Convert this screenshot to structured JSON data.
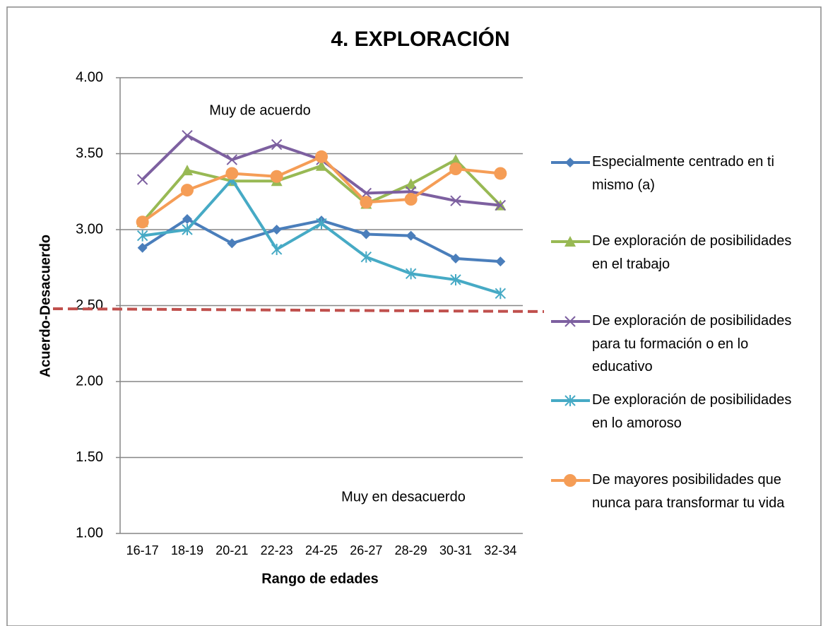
{
  "chart_data": {
    "type": "line",
    "title": "4. EXPLORACIÓN",
    "x_label": "Rango de edades",
    "y_label": "Acuerdo-Desacuerdo",
    "annotations": [
      "Muy de acuerdo",
      "Muy en desacuerdo"
    ],
    "categories": [
      "16-17",
      "18-19",
      "20-21",
      "22-23",
      "24-25",
      "26-27",
      "28-29",
      "30-31",
      "32-34"
    ],
    "series": [
      {
        "name": "Especialmente centrado en ti mismo (a)",
        "color": "#4a7ebb",
        "marker": "diamond",
        "values": [
          2.88,
          3.07,
          2.91,
          3.0,
          3.06,
          2.97,
          2.96,
          2.81,
          2.79
        ]
      },
      {
        "name": "De exploración de posibilidades en el trabajo",
        "color": "#98b954",
        "marker": "triangle",
        "values": [
          3.05,
          3.39,
          3.32,
          3.32,
          3.42,
          3.17,
          3.3,
          3.46,
          3.16
        ]
      },
      {
        "name": "De exploración de posibilidades para tu formación o en lo educativo",
        "color": "#7d60a0",
        "marker": "x",
        "values": [
          3.33,
          3.62,
          3.46,
          3.56,
          3.46,
          3.24,
          3.25,
          3.19,
          3.16
        ]
      },
      {
        "name": "De exploración de posibilidades en lo amoroso",
        "color": "#46aac5",
        "marker": "star",
        "values": [
          2.96,
          3.0,
          3.33,
          2.87,
          3.04,
          2.82,
          2.71,
          2.67,
          2.58
        ]
      },
      {
        "name": "De mayores posibilidades que nunca para transformar tu vida",
        "color": "#f59d56",
        "marker": "circle",
        "values": [
          3.05,
          3.26,
          3.37,
          3.35,
          3.48,
          3.18,
          3.2,
          3.4,
          3.37
        ]
      }
    ],
    "reference_line": 2.47,
    "ylim": [
      1,
      4
    ],
    "yticks": [
      {
        "value": 1,
        "label": "1.00"
      },
      {
        "value": 1.5,
        "label": "1.50"
      },
      {
        "value": 2,
        "label": "2.00"
      },
      {
        "value": 2.5,
        "label": "2.50"
      },
      {
        "value": 3,
        "label": "3.00"
      },
      {
        "value": 3.5,
        "label": "3.50"
      },
      {
        "value": 4,
        "label": "4.00"
      }
    ],
    "grid": true,
    "legend": "right"
  }
}
